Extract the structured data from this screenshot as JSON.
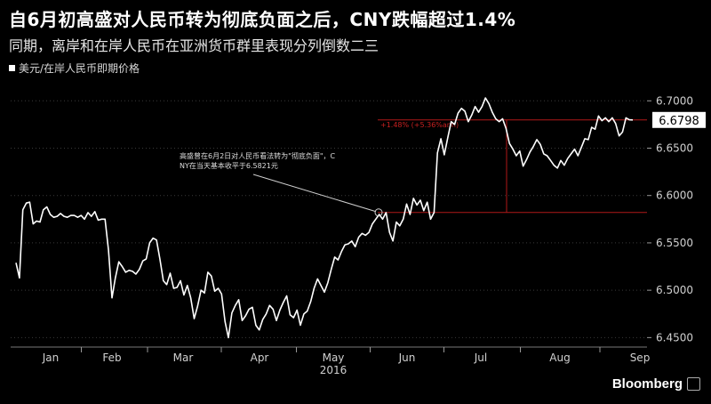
{
  "chart_data": {
    "type": "line",
    "title": "自6月初高盛对人民币转为彻底负面之后，CNY跌幅超过1.4%",
    "subtitle": "同期，离岸和在岸人民币在亚洲货币群里表现分列倒数二三",
    "legend": [
      "美元/在岸人民币即期价格"
    ],
    "year_label": "2016",
    "x_tick_labels": [
      "Jan",
      "Feb",
      "Mar",
      "Apr",
      "May",
      "Jun",
      "Jul",
      "Aug",
      "Sep"
    ],
    "y_tick_labels": [
      "6.7000",
      "6.6500",
      "6.6000",
      "6.5500",
      "6.5000",
      "6.4500"
    ],
    "ylim": [
      6.44,
      6.72
    ],
    "last_value_label": "6.6798",
    "annotation": "高盛曾在6月2日对人民币看法转为\"彻底负面\"，CNY在当天基本收平于6.5821元",
    "change_label": "+1.48% (+5.36%ann)",
    "reference_levels": [
      6.5821,
      6.6798
    ],
    "series": [
      {
        "values": [
          6.529,
          6.513,
          6.585,
          6.592,
          6.593,
          6.57,
          6.573,
          6.572,
          6.585,
          6.588,
          6.58,
          6.577,
          6.578,
          6.581,
          6.578,
          6.577,
          6.579,
          6.579,
          6.577,
          6.579,
          6.575,
          6.582,
          6.578,
          6.583,
          6.574,
          6.575,
          6.575,
          6.542,
          6.492,
          6.513,
          6.53,
          6.525,
          6.519,
          6.521,
          6.52,
          6.517,
          6.522,
          6.531,
          6.533,
          6.55,
          6.555,
          6.553,
          6.533,
          6.51,
          6.506,
          6.518,
          6.502,
          6.503,
          6.51,
          6.495,
          6.505,
          6.492,
          6.47,
          6.483,
          6.5,
          6.497,
          6.519,
          6.515,
          6.499,
          6.502,
          6.496,
          6.467,
          6.45,
          6.476,
          6.484,
          6.49,
          6.468,
          6.473,
          6.48,
          6.482,
          6.463,
          6.458,
          6.469,
          6.475,
          6.484,
          6.48,
          6.468,
          6.479,
          6.487,
          6.494,
          6.474,
          6.471,
          6.479,
          6.463,
          6.475,
          6.478,
          6.488,
          6.502,
          6.512,
          6.505,
          6.498,
          6.508,
          6.522,
          6.535,
          6.532,
          6.541,
          6.548,
          6.549,
          6.552,
          6.546,
          6.556,
          6.56,
          6.558,
          6.561,
          6.57,
          6.575,
          6.58,
          6.575,
          6.582,
          6.561,
          6.552,
          6.572,
          6.568,
          6.575,
          6.591,
          6.58,
          6.597,
          6.59,
          6.595,
          6.584,
          6.593,
          6.575,
          6.582,
          6.645,
          6.66,
          6.643,
          6.661,
          6.678,
          6.675,
          6.687,
          6.692,
          6.689,
          6.678,
          6.685,
          6.694,
          6.688,
          6.694,
          6.703,
          6.697,
          6.688,
          6.681,
          6.678,
          6.681,
          6.671,
          6.655,
          6.649,
          6.642,
          6.647,
          6.631,
          6.638,
          6.646,
          6.652,
          6.659,
          6.654,
          6.644,
          6.642,
          6.637,
          6.632,
          6.629,
          6.637,
          6.632,
          6.639,
          6.644,
          6.649,
          6.642,
          6.651,
          6.66,
          6.659,
          6.672,
          6.67,
          6.684,
          6.679,
          6.682,
          6.678,
          6.682,
          6.676,
          6.663,
          6.667,
          6.682,
          6.68,
          6.6798
        ]
      }
    ]
  }
}
